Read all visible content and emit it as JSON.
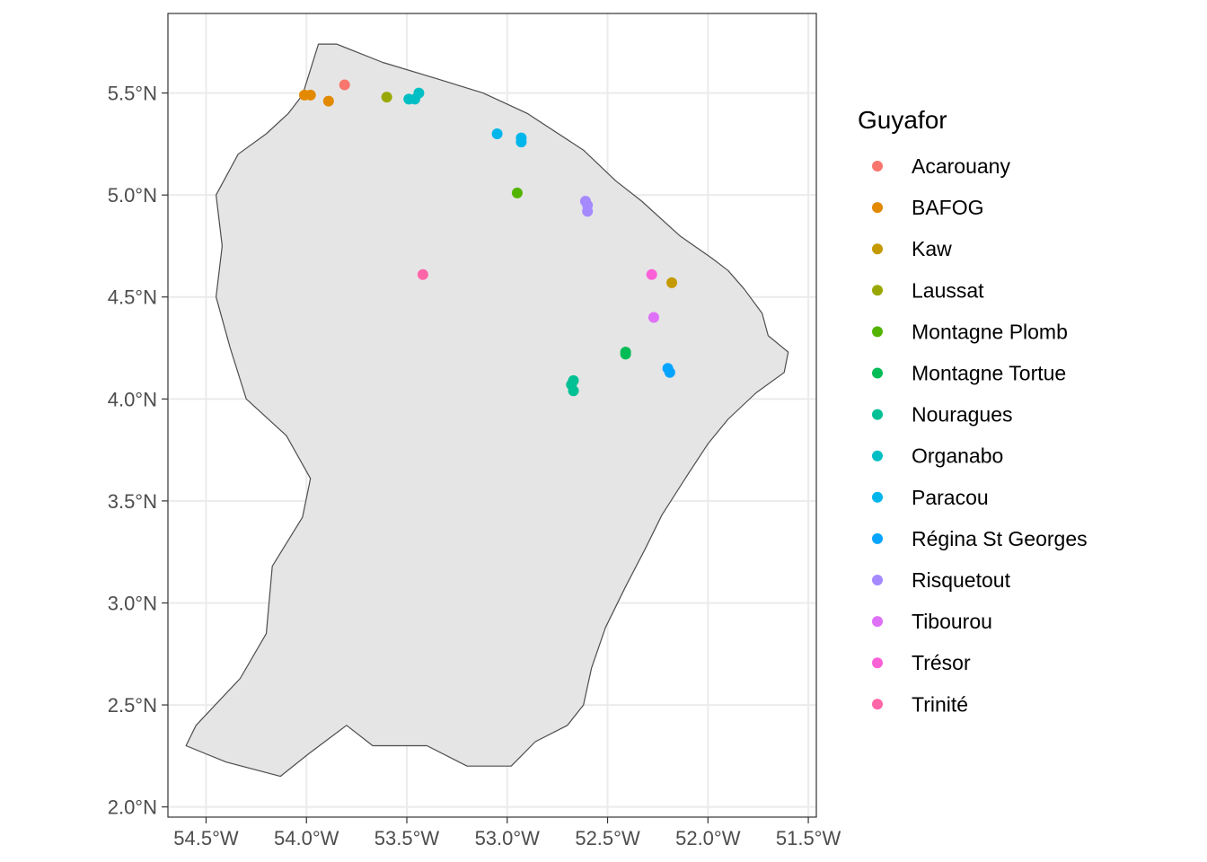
{
  "chart_data": {
    "type": "scatter",
    "title": "",
    "xlabel": "",
    "ylabel": "",
    "xlim": [
      -54.69,
      -51.46
    ],
    "ylim": [
      1.95,
      5.89
    ],
    "grid": true,
    "legend_placement": "right",
    "x_ticks": [
      {
        "value": -54.5,
        "label": "54.5°W"
      },
      {
        "value": -54.0,
        "label": "54.0°W"
      },
      {
        "value": -53.5,
        "label": "53.5°W"
      },
      {
        "value": -53.0,
        "label": "53.0°W"
      },
      {
        "value": -52.5,
        "label": "52.5°W"
      },
      {
        "value": -52.0,
        "label": "52.0°W"
      },
      {
        "value": -51.5,
        "label": "51.5°W"
      }
    ],
    "y_ticks": [
      {
        "value": 2.0,
        "label": "2.0°N"
      },
      {
        "value": 2.5,
        "label": "2.5°N"
      },
      {
        "value": 3.0,
        "label": "3.0°N"
      },
      {
        "value": 3.5,
        "label": "3.5°N"
      },
      {
        "value": 4.0,
        "label": "4.0°N"
      },
      {
        "value": 4.5,
        "label": "4.5°N"
      },
      {
        "value": 5.0,
        "label": "5.0°N"
      },
      {
        "value": 5.5,
        "label": "5.5°N"
      }
    ],
    "legend_title": "Guyafor",
    "series": [
      {
        "name": "Acarouany",
        "color": "#F8766D",
        "points": [
          [
            -53.81,
            5.54
          ]
        ]
      },
      {
        "name": "BAFOG",
        "color": "#E38900",
        "points": [
          [
            -54.01,
            5.49
          ],
          [
            -53.98,
            5.49
          ],
          [
            -53.89,
            5.46
          ]
        ]
      },
      {
        "name": "Kaw",
        "color": "#C49A00",
        "points": [
          [
            -52.18,
            4.57
          ]
        ]
      },
      {
        "name": "Laussat",
        "color": "#99A800",
        "points": [
          [
            -53.6,
            5.48
          ]
        ]
      },
      {
        "name": "Montagne Plomb",
        "color": "#53B400",
        "points": [
          [
            -52.95,
            5.01
          ]
        ]
      },
      {
        "name": "Montagne Tortue",
        "color": "#00BC56",
        "points": [
          [
            -52.41,
            4.23
          ],
          [
            -52.41,
            4.22
          ]
        ]
      },
      {
        "name": "Nouragues",
        "color": "#00C094",
        "points": [
          [
            -52.67,
            4.09
          ],
          [
            -52.68,
            4.07
          ],
          [
            -52.67,
            4.04
          ]
        ]
      },
      {
        "name": "Organabo",
        "color": "#00BFC4",
        "points": [
          [
            -53.49,
            5.47
          ],
          [
            -53.46,
            5.47
          ],
          [
            -53.44,
            5.5
          ]
        ]
      },
      {
        "name": "Paracou",
        "color": "#00B6EB",
        "points": [
          [
            -53.05,
            5.3
          ],
          [
            -52.93,
            5.28
          ],
          [
            -52.93,
            5.26
          ]
        ]
      },
      {
        "name": "Régina St Georges",
        "color": "#06A4FF",
        "points": [
          [
            -52.2,
            4.15
          ],
          [
            -52.19,
            4.13
          ]
        ]
      },
      {
        "name": "Risquetout",
        "color": "#A58AFF",
        "points": [
          [
            -52.61,
            4.97
          ],
          [
            -52.6,
            4.95
          ],
          [
            -52.6,
            4.92
          ]
        ]
      },
      {
        "name": "Tibourou",
        "color": "#DF70F8",
        "points": [
          [
            -52.27,
            4.4
          ]
        ]
      },
      {
        "name": "Trésor",
        "color": "#FB61D7",
        "points": [
          [
            -52.28,
            4.61
          ]
        ]
      },
      {
        "name": "Trinité",
        "color": "#FF66A8",
        "points": [
          [
            -53.42,
            4.61
          ]
        ]
      }
    ],
    "outline": [
      [
        -54.02,
        5.49
      ],
      [
        -53.94,
        5.74
      ],
      [
        -53.85,
        5.74
      ],
      [
        -53.62,
        5.65
      ],
      [
        -53.35,
        5.57
      ],
      [
        -53.12,
        5.5
      ],
      [
        -52.9,
        5.4
      ],
      [
        -52.62,
        5.22
      ],
      [
        -52.46,
        5.07
      ],
      [
        -52.33,
        4.97
      ],
      [
        -52.14,
        4.8
      ],
      [
        -51.98,
        4.69
      ],
      [
        -51.9,
        4.63
      ],
      [
        -51.82,
        4.54
      ],
      [
        -51.73,
        4.42
      ],
      [
        -51.7,
        4.31
      ],
      [
        -51.6,
        4.23
      ],
      [
        -51.62,
        4.13
      ],
      [
        -51.76,
        4.03
      ],
      [
        -51.9,
        3.9
      ],
      [
        -52.0,
        3.78
      ],
      [
        -52.1,
        3.63
      ],
      [
        -52.23,
        3.43
      ],
      [
        -52.31,
        3.27
      ],
      [
        -52.41,
        3.08
      ],
      [
        -52.51,
        2.88
      ],
      [
        -52.58,
        2.68
      ],
      [
        -52.62,
        2.5
      ],
      [
        -52.7,
        2.4
      ],
      [
        -52.86,
        2.32
      ],
      [
        -52.98,
        2.2
      ],
      [
        -53.2,
        2.2
      ],
      [
        -53.4,
        2.3
      ],
      [
        -53.67,
        2.3
      ],
      [
        -53.8,
        2.4
      ],
      [
        -53.99,
        2.26
      ],
      [
        -54.13,
        2.15
      ],
      [
        -54.4,
        2.22
      ],
      [
        -54.6,
        2.3
      ],
      [
        -54.55,
        2.4
      ],
      [
        -54.33,
        2.63
      ],
      [
        -54.2,
        2.85
      ],
      [
        -54.17,
        3.18
      ],
      [
        -54.02,
        3.42
      ],
      [
        -53.98,
        3.61
      ],
      [
        -54.1,
        3.82
      ],
      [
        -54.3,
        4.0
      ],
      [
        -54.38,
        4.25
      ],
      [
        -54.45,
        4.5
      ],
      [
        -54.42,
        4.75
      ],
      [
        -54.45,
        5.0
      ],
      [
        -54.34,
        5.2
      ],
      [
        -54.2,
        5.3
      ],
      [
        -54.09,
        5.4
      ],
      [
        -54.02,
        5.49
      ]
    ]
  }
}
